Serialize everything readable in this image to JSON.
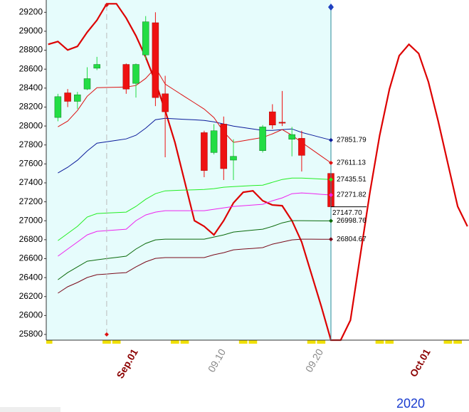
{
  "chart_data": {
    "type": "candlestick",
    "categories": [
      null,
      null,
      null,
      null,
      null,
      null,
      null,
      null,
      null,
      "Sep.01",
      null,
      null,
      null,
      null,
      null,
      null,
      null,
      null,
      "09.10",
      null,
      null,
      null,
      null,
      null,
      null,
      null,
      null,
      null,
      "09.20",
      null,
      null,
      null,
      null,
      null,
      null,
      null,
      null,
      null,
      null,
      "Oct.01",
      null,
      null,
      null,
      null
    ],
    "year_label": "2020",
    "ylim": [
      25740,
      29330
    ],
    "yticks": [
      25800,
      26000,
      26200,
      26400,
      26600,
      26800,
      27000,
      27200,
      27400,
      27600,
      27800,
      28000,
      28200,
      28400,
      28600,
      28800,
      29000,
      29200
    ],
    "candles": {
      "up_color": "#22dd44",
      "down_color": "#ee1111",
      "open": [
        null,
        28090,
        28350,
        28260,
        28390,
        28610,
        null,
        null,
        28650,
        28450,
        28750,
        29090,
        28340,
        null,
        null,
        null,
        27930,
        27720,
        28020,
        27640,
        null,
        null,
        27740,
        28150,
        28040,
        27860,
        27870,
        null,
        null,
        27500,
        null,
        null,
        null,
        null,
        null,
        null,
        null,
        null,
        null,
        null,
        null,
        null,
        null,
        null
      ],
      "high": [
        null,
        28340,
        28390,
        28360,
        28620,
        28730,
        null,
        null,
        28660,
        28660,
        29160,
        29200,
        28530,
        null,
        null,
        null,
        27950,
        28020,
        28100,
        27860,
        null,
        null,
        28010,
        28230,
        28370,
        27990,
        27950,
        null,
        null,
        27500,
        null,
        null,
        null,
        null,
        null,
        null,
        null,
        null,
        null,
        null,
        null,
        null,
        null,
        null
      ],
      "low": [
        null,
        28050,
        28200,
        28180,
        28380,
        28590,
        null,
        null,
        28340,
        28300,
        28700,
        28210,
        27670,
        null,
        null,
        null,
        27460,
        27700,
        27430,
        27430,
        null,
        null,
        27720,
        27970,
        28000,
        27680,
        27520,
        null,
        null,
        27130,
        null,
        null,
        null,
        null,
        null,
        null,
        null,
        null,
        null,
        null,
        null,
        null,
        null,
        null
      ],
      "close": [
        null,
        28310,
        28260,
        28330,
        28500,
        28650,
        null,
        null,
        28390,
        28650,
        29100,
        28300,
        28150,
        null,
        null,
        null,
        27530,
        27950,
        27550,
        27680,
        null,
        null,
        27990,
        28010,
        28030,
        27910,
        27690,
        null,
        null,
        27147.7,
        null,
        null,
        null,
        null,
        null,
        null,
        null,
        null,
        null,
        null,
        null,
        null,
        null,
        null
      ],
      "last_close_label": "27147.70"
    },
    "series": [
      {
        "color": "#0a1a9a",
        "values": [
          null,
          27504,
          27564,
          27639,
          27736,
          27819,
          27834,
          27849,
          27864,
          27902,
          27977,
          28067,
          28082,
          28076,
          28070,
          28065,
          28059,
          28044,
          28022,
          27999,
          27984,
          27969,
          27954,
          27954,
          27962,
          27969,
          27932,
          27905,
          27878,
          27851.79,
          null,
          null,
          null,
          null,
          null,
          null,
          null,
          null,
          null,
          null,
          null,
          null,
          null,
          null
        ]
      },
      {
        "color": "#dd1111",
        "values": [
          null,
          27992,
          28052,
          28164,
          28314,
          28404,
          28407,
          28409,
          28412,
          28427,
          28502,
          28615,
          28442,
          28376,
          28310,
          28245,
          28179,
          28089,
          27939,
          27827,
          27844,
          27862,
          27879,
          27917,
          27962,
          27902,
          27827,
          27755,
          27683,
          27611.13,
          null,
          null,
          null,
          null,
          null,
          null,
          null,
          null,
          null,
          null,
          null,
          null,
          null,
          null
        ]
      },
      {
        "color": "#22ee22",
        "values": [
          null,
          26791,
          26866,
          26941,
          27039,
          27076,
          27081,
          27086,
          27091,
          27151,
          27226,
          27286,
          27316,
          27320,
          27324,
          27327,
          27331,
          27339,
          27354,
          27361,
          27366,
          27371,
          27376,
          27406,
          27436,
          27451,
          27451,
          27446,
          27440,
          27435.51,
          null,
          null,
          null,
          null,
          null,
          null,
          null,
          null,
          null,
          null,
          null,
          null,
          null,
          null
        ]
      },
      {
        "color": "#ee22ee",
        "values": [
          null,
          26626,
          26701,
          26776,
          26851,
          26888,
          26896,
          26903,
          26911,
          27001,
          27061,
          27091,
          27106,
          27106,
          27106,
          27106,
          27106,
          27121,
          27136,
          27151,
          27159,
          27166,
          27174,
          27211,
          27241,
          27286,
          27294,
          27287,
          27279,
          27271.82,
          null,
          null,
          null,
          null,
          null,
          null,
          null,
          null,
          null,
          null,
          null,
          null,
          null,
          null
        ]
      },
      {
        "color": "#0a6a0a",
        "values": [
          null,
          26378,
          26453,
          26513,
          26573,
          26588,
          26601,
          26613,
          26626,
          26701,
          26761,
          26798,
          26806,
          26806,
          26806,
          26806,
          26806,
          26828,
          26851,
          26881,
          26891,
          26901,
          26911,
          26941,
          26978,
          27001,
          27001,
          27000,
          26999,
          26998.76,
          null,
          null,
          null,
          null,
          null,
          null,
          null,
          null,
          null,
          null,
          null,
          null,
          null,
          null
        ]
      },
      {
        "color": "#7a0a1a",
        "values": [
          null,
          26236,
          26303,
          26348,
          26401,
          26431,
          26438,
          26446,
          26453,
          26513,
          26566,
          26603,
          26611,
          26611,
          26611,
          26611,
          26611,
          26641,
          26663,
          26693,
          26701,
          26708,
          26716,
          26753,
          26776,
          26798,
          26806,
          26806,
          26805,
          26804.67,
          null,
          null,
          null,
          null,
          null,
          null,
          null,
          null,
          null,
          null,
          null,
          null,
          null,
          null
        ]
      }
    ],
    "cycle": {
      "color": "#dd0000",
      "values": [
        28862,
        28892,
        28802,
        28840,
        28990,
        29117,
        29290,
        29290,
        29140,
        28952,
        28727,
        28465,
        28164,
        27827,
        27414,
        27001,
        26941,
        26851,
        27001,
        27189,
        27301,
        27316,
        27211,
        27166,
        27159,
        27001,
        26776,
        26438,
        26100,
        25740,
        25740,
        25950,
        26626,
        27301,
        27902,
        28389,
        28742,
        28862,
        28765,
        28465,
        28052,
        27601,
        27151,
        26941
      ]
    }
  }
}
